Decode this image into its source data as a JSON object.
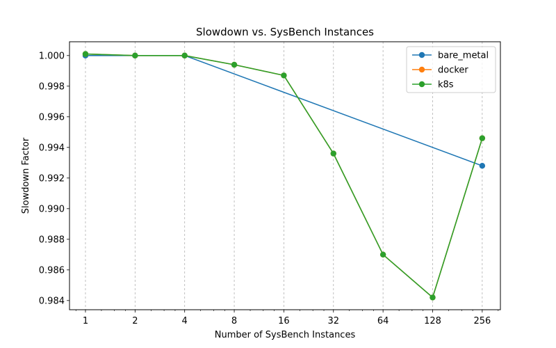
{
  "chart_data": {
    "type": "line",
    "title": "Slowdown vs. SysBench Instances",
    "xlabel": "Number of SysBench Instances",
    "ylabel": "Slowdown Factor",
    "x_scale": "log2",
    "xlim": [
      0.8,
      330
    ],
    "ylim": [
      0.9834,
      1.0009
    ],
    "x_ticks": [
      1,
      2,
      4,
      8,
      16,
      32,
      64,
      128,
      256
    ],
    "x_tick_labels": [
      "1",
      "2",
      "4",
      "8",
      "16",
      "32",
      "64",
      "128",
      "256"
    ],
    "y_ticks": [
      0.984,
      0.986,
      0.988,
      0.99,
      0.992,
      0.994,
      0.996,
      0.998,
      1.0
    ],
    "y_tick_labels": [
      "0.984",
      "0.986",
      "0.988",
      "0.990",
      "0.992",
      "0.994",
      "0.996",
      "0.998",
      "1.000"
    ],
    "grid": "vertical-dashed",
    "legend_position": "top-right",
    "series": [
      {
        "name": "bare_metal",
        "color": "#1f77b4",
        "x": [
          1,
          2,
          4,
          256
        ],
        "y": [
          1.0,
          1.0,
          1.0,
          0.9928
        ]
      },
      {
        "name": "docker",
        "color": "#ff7f0e",
        "x": [
          1,
          2,
          4,
          8,
          16,
          32,
          64,
          128,
          256
        ],
        "y": [
          1.0001,
          1.0,
          1.0,
          0.9994,
          0.9987,
          0.9936,
          0.987,
          0.9842,
          0.9946
        ]
      },
      {
        "name": "k8s",
        "color": "#2ca02c",
        "x": [
          1,
          2,
          4,
          8,
          16,
          32,
          64,
          128,
          256
        ],
        "y": [
          1.0001,
          1.0,
          1.0,
          0.9994,
          0.9987,
          0.9936,
          0.987,
          0.9842,
          0.9946
        ]
      }
    ]
  }
}
